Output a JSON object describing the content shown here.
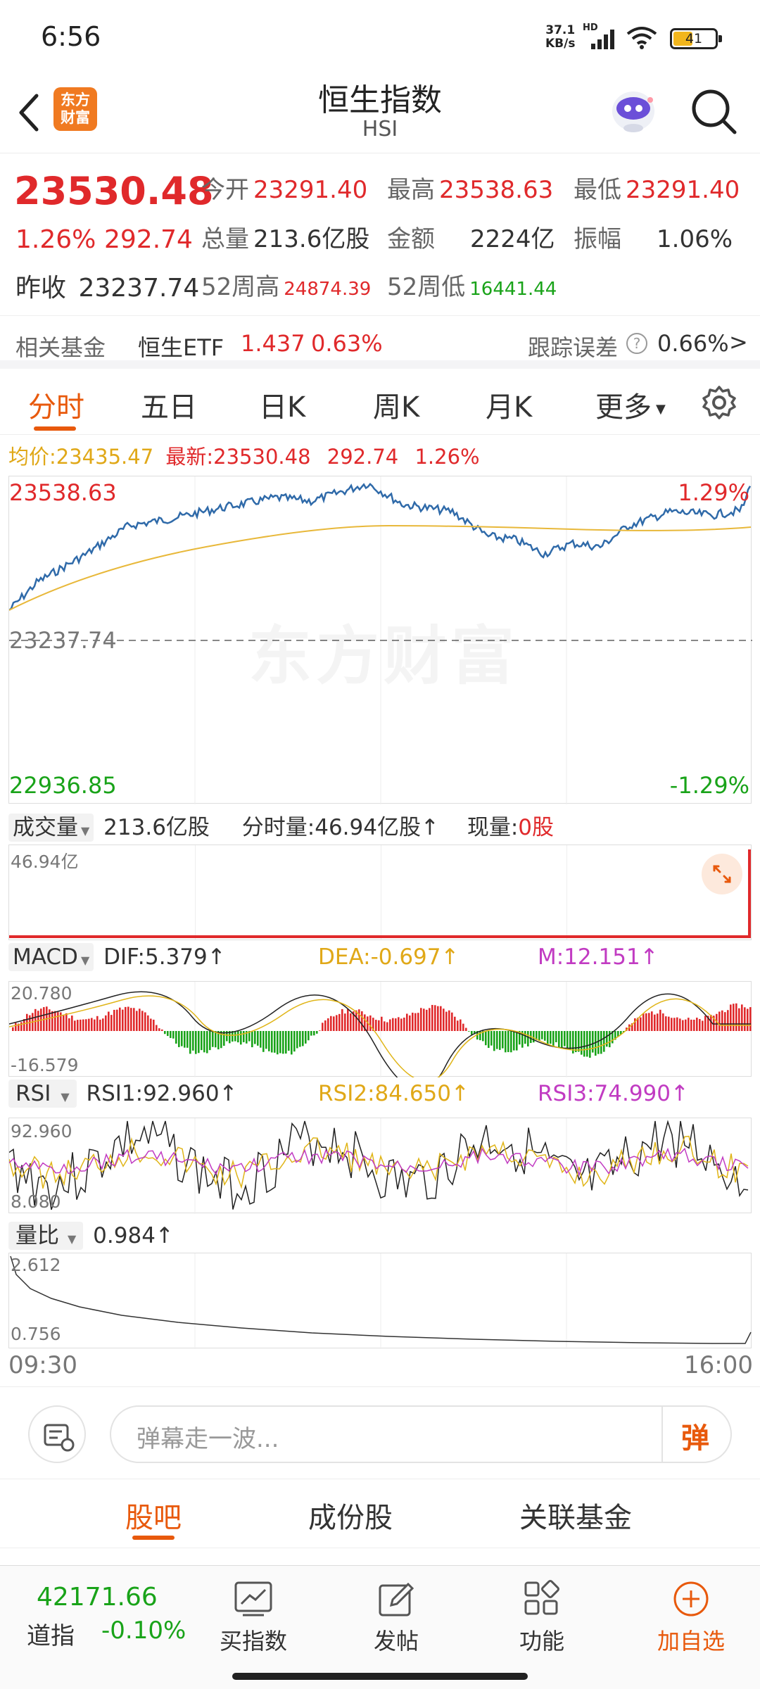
{
  "status_bar": {
    "time": "6:56",
    "net_speed_top": "37.1",
    "net_speed_bottom": "KB/s",
    "hd": "HD",
    "battery": "41"
  },
  "header": {
    "title": "恒生指数",
    "subtitle": "HSI",
    "logo_top": "东方",
    "logo_bottom": "财富"
  },
  "quote": {
    "price": "23530.48",
    "change_pct": "1.26%",
    "change_abs": "292.74",
    "open_label": "今开",
    "open": "23291.40",
    "high_label": "最高",
    "high": "23538.63",
    "low_label": "最低",
    "low": "23291.40",
    "volume_label": "总量",
    "volume": "213.6亿股",
    "amount_label": "金额",
    "amount": "2224亿",
    "amplitude_label": "振幅",
    "amplitude": "1.06%",
    "prev_close_label": "昨收",
    "prev_close": "23237.74",
    "w52_high_label": "52周高",
    "w52_high": "24874.39",
    "w52_low_label": "52周低",
    "w52_low": "16441.44"
  },
  "fund_row": {
    "label": "相关基金",
    "fund_name": "恒生ETF",
    "fund_price": "1.437",
    "fund_pct": "0.63%",
    "tracking_label": "跟踪误差",
    "tracking_value": "0.66%",
    "arrow": ">"
  },
  "tabs": [
    {
      "label": "分时",
      "active": true
    },
    {
      "label": "五日"
    },
    {
      "label": "日K"
    },
    {
      "label": "周K"
    },
    {
      "label": "月K"
    },
    {
      "label": "更多"
    }
  ],
  "intraday": {
    "avg_label": "均价:",
    "avg": "23435.47",
    "latest_label": "最新:",
    "latest": "23530.48",
    "latest_chg": "292.74",
    "latest_pct": "1.26%",
    "y_top": "23538.63",
    "y_mid": "23237.74",
    "y_bottom": "22936.85",
    "pct_top": "1.29%",
    "pct_bottom": "-1.29%",
    "watermark": "东方财富"
  },
  "volume_panel": {
    "selector": "成交量",
    "total": "213.6亿股",
    "minute_label": "分时量:",
    "minute": "46.94亿股",
    "current_label": "现量:",
    "current": "0股",
    "axis_max": "46.94亿"
  },
  "macd_panel": {
    "selector": "MACD",
    "dif": "DIF:5.379",
    "dea": "DEA:-0.697",
    "m": "M:12.151",
    "axis_max": "20.780",
    "axis_min": "-16.579"
  },
  "rsi_panel": {
    "selector": "RSI",
    "rsi1": "RSI1:92.960",
    "rsi2": "RSI2:84.650",
    "rsi3": "RSI3:74.990",
    "axis_max": "92.960",
    "axis_min": "8.080"
  },
  "ratio_panel": {
    "selector": "量比",
    "value": "0.984",
    "axis_max": "2.612",
    "axis_min": "0.756"
  },
  "time_axis": {
    "start": "09:30",
    "end": "16:00"
  },
  "comment_bar": {
    "placeholder": "弹幕走一波...",
    "danmaku_btn": "弹"
  },
  "bottom_tabs": [
    {
      "label": "股吧",
      "active": true
    },
    {
      "label": "成份股"
    },
    {
      "label": "关联基金"
    }
  ],
  "bottom_nav": {
    "dow_value": "42171.66",
    "dow_label": "道指",
    "dow_pct": "-0.10%",
    "items": [
      {
        "label": "买指数"
      },
      {
        "label": "发帖"
      },
      {
        "label": "功能"
      },
      {
        "label": "加自选"
      }
    ]
  },
  "colors": {
    "up": "#e0292b",
    "down": "#19a319",
    "accent": "#e8590c",
    "price_line": "#2f6aa9",
    "avg_line": "#e8b83a"
  }
}
